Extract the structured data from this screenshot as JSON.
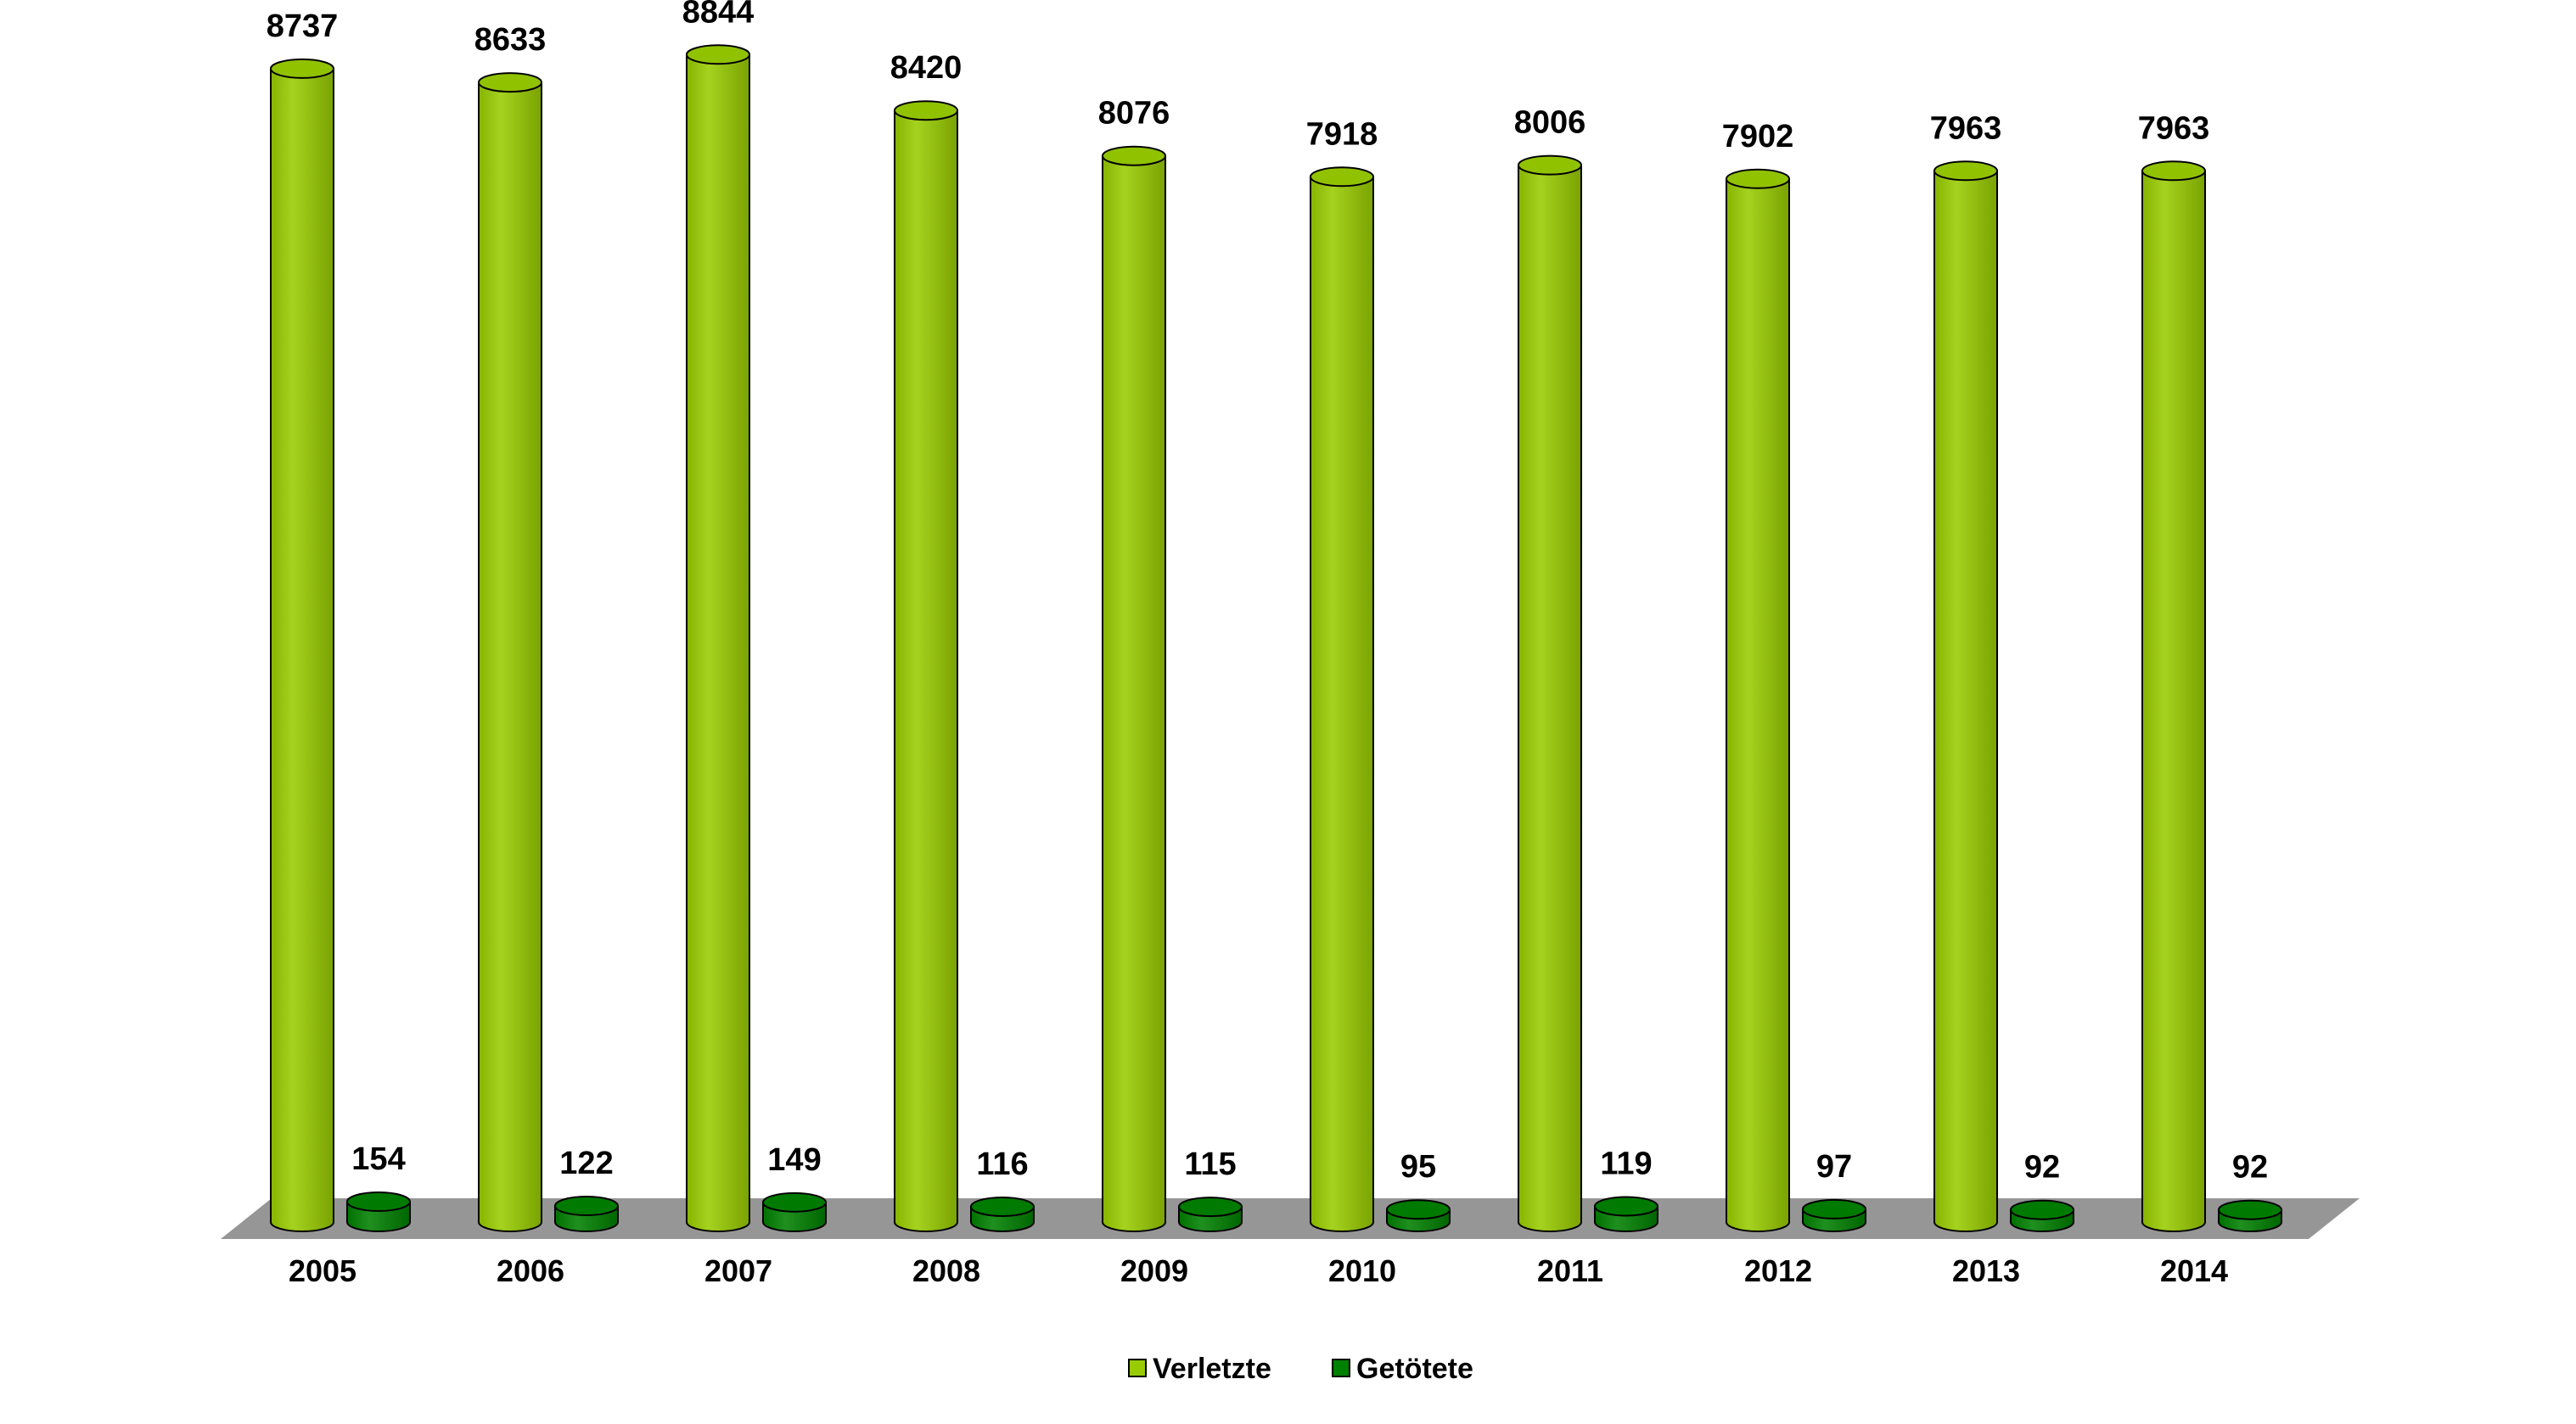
{
  "chart_data": {
    "type": "bar",
    "categories": [
      "2005",
      "2006",
      "2007",
      "2008",
      "2009",
      "2010",
      "2011",
      "2012",
      "2013",
      "2014"
    ],
    "series": [
      {
        "name": "Verletzte",
        "values": [
          8737,
          8633,
          8844,
          8420,
          8076,
          7918,
          8006,
          7902,
          7963,
          7963
        ],
        "color": "#99cc00"
      },
      {
        "name": "Getötete",
        "values": [
          154,
          122,
          149,
          116,
          115,
          95,
          119,
          97,
          92,
          92
        ],
        "color": "#008000"
      }
    ],
    "ylim": [
      0,
      9000
    ],
    "shape": "cylinder",
    "floor_color": "#969696",
    "legend": "bottom",
    "grid": false
  }
}
